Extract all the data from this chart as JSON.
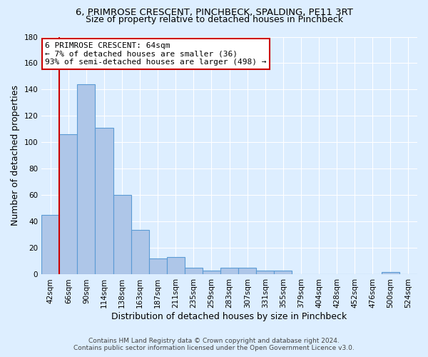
{
  "title": "6, PRIMROSE CRESCENT, PINCHBECK, SPALDING, PE11 3RT",
  "subtitle": "Size of property relative to detached houses in Pinchbeck",
  "xlabel": "Distribution of detached houses by size in Pinchbeck",
  "ylabel": "Number of detached properties",
  "bin_labels": [
    "42sqm",
    "66sqm",
    "90sqm",
    "114sqm",
    "138sqm",
    "163sqm",
    "187sqm",
    "211sqm",
    "235sqm",
    "259sqm",
    "283sqm",
    "307sqm",
    "331sqm",
    "355sqm",
    "379sqm",
    "404sqm",
    "428sqm",
    "452sqm",
    "476sqm",
    "500sqm",
    "524sqm"
  ],
  "bar_heights": [
    45,
    106,
    144,
    111,
    60,
    34,
    12,
    13,
    5,
    3,
    5,
    5,
    3,
    3,
    0,
    0,
    0,
    0,
    0,
    2,
    0
  ],
  "bar_color": "#aec6e8",
  "bar_edge_color": "#5b9bd5",
  "background_color": "#ddeeff",
  "grid_color": "#ffffff",
  "vline_color": "#cc0000",
  "annotation_line1": "6 PRIMROSE CRESCENT: 64sqm",
  "annotation_line2": "← 7% of detached houses are smaller (36)",
  "annotation_line3": "93% of semi-detached houses are larger (498) →",
  "annotation_box_color": "#ffffff",
  "annotation_box_edge": "#cc0000",
  "ylim": [
    0,
    180
  ],
  "yticks": [
    0,
    20,
    40,
    60,
    80,
    100,
    120,
    140,
    160,
    180
  ],
  "footer_line1": "Contains HM Land Registry data © Crown copyright and database right 2024.",
  "footer_line2": "Contains public sector information licensed under the Open Government Licence v3.0.",
  "title_fontsize": 9.5,
  "subtitle_fontsize": 9,
  "tick_fontsize": 7.5,
  "label_fontsize": 9,
  "annotation_fontsize": 8
}
